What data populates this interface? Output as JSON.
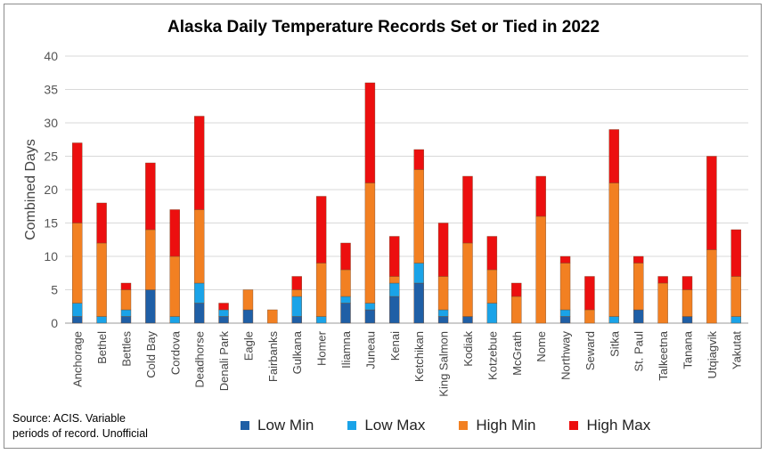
{
  "chart_data": {
    "type": "bar",
    "stacked": true,
    "title": "Alaska Daily Temperature Records Set or Tied in 2022",
    "ylabel": "Combined Days",
    "xlabel": "",
    "ylim": [
      0,
      40
    ],
    "yticks": [
      0,
      5,
      10,
      15,
      20,
      25,
      30,
      35,
      40
    ],
    "grid": true,
    "legend_position": "bottom",
    "categories": [
      "Anchorage",
      "Bethel",
      "Bettles",
      "Cold Bay",
      "Cordova",
      "Deadhorse",
      "Denali Park",
      "Eagle",
      "Fairbanks",
      "Gulkana",
      "Homer",
      "Iliamna",
      "Juneau",
      "Kenai",
      "Ketchikan",
      "King Salmon",
      "Kodiak",
      "Kotzebue",
      "McGrath",
      "Nome",
      "Northway",
      "Seward",
      "Sitka",
      "St. Paul",
      "Talkeetna",
      "Tanana",
      "Utqiagvik",
      "Yakutat"
    ],
    "series": [
      {
        "name": "Low Min",
        "color": "#1f5fa6",
        "values": [
          1,
          0,
          1,
          5,
          0,
          3,
          1,
          2,
          0,
          1,
          0,
          3,
          2,
          4,
          6,
          1,
          1,
          0,
          0,
          0,
          1,
          0,
          0,
          2,
          0,
          1,
          0,
          0
        ]
      },
      {
        "name": "Low Max",
        "color": "#1aa3e8",
        "values": [
          2,
          1,
          1,
          0,
          1,
          3,
          1,
          0,
          0,
          3,
          1,
          1,
          1,
          2,
          3,
          1,
          0,
          3,
          0,
          0,
          1,
          0,
          1,
          0,
          0,
          0,
          0,
          1
        ]
      },
      {
        "name": "High Min",
        "color": "#f28022",
        "values": [
          12,
          11,
          3,
          9,
          9,
          11,
          0,
          3,
          2,
          1,
          8,
          4,
          18,
          1,
          14,
          5,
          11,
          5,
          4,
          16,
          7,
          2,
          20,
          7,
          6,
          4,
          11,
          6
        ]
      },
      {
        "name": "High Max",
        "color": "#ec0f0f",
        "values": [
          12,
          6,
          1,
          10,
          7,
          14,
          1,
          0,
          0,
          2,
          10,
          4,
          15,
          6,
          3,
          8,
          10,
          5,
          2,
          6,
          1,
          5,
          8,
          1,
          1,
          2,
          14,
          7
        ]
      }
    ]
  },
  "source_note": {
    "line1": "Source: ACIS. Variable",
    "line2": "periods of record. Unofficial"
  }
}
